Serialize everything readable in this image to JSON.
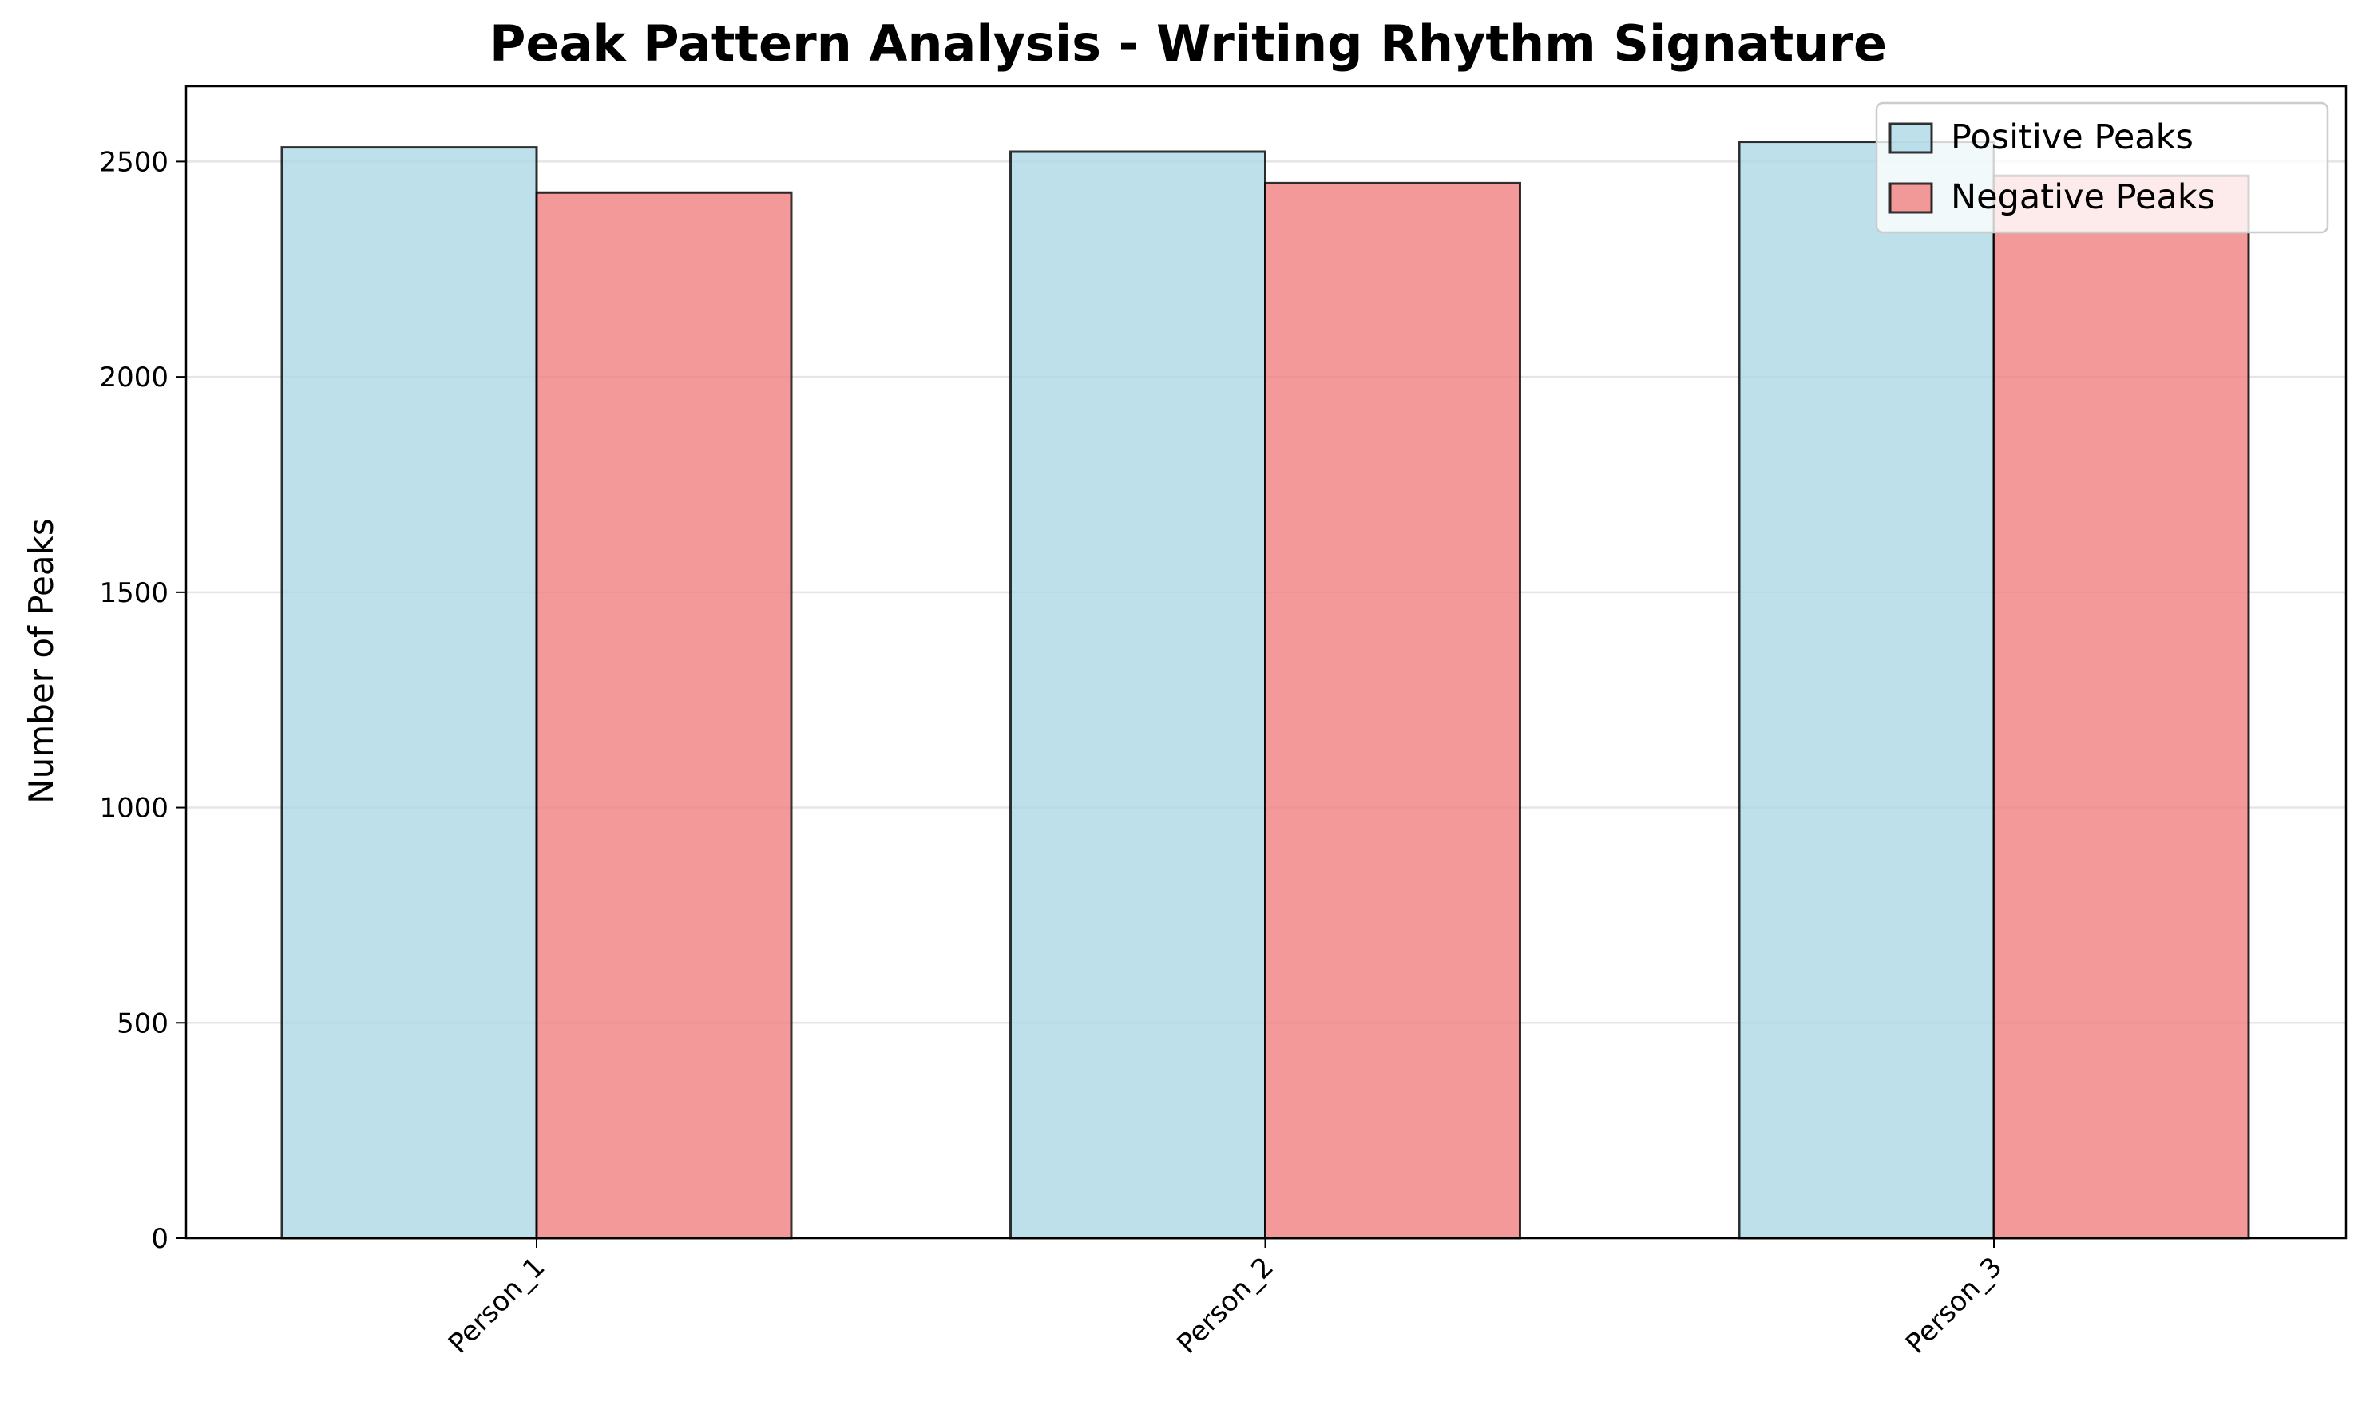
{
  "chart_data": {
    "type": "bar",
    "title": "Peak Pattern Analysis - Writing Rhythm Signature",
    "xlabel": "",
    "ylabel": "Number of Peaks",
    "categories": [
      "Person_1",
      "Person_2",
      "Person_3"
    ],
    "series": [
      {
        "name": "Positive Peaks",
        "values": [
          2533,
          2523,
          2546
        ],
        "color": "#add8e6"
      },
      {
        "name": "Negative Peaks",
        "values": [
          2428,
          2450,
          2467
        ],
        "color": "#f08080"
      }
    ],
    "ylim": [
      0,
      2675
    ],
    "yticks": [
      0,
      500,
      1000,
      1500,
      2000,
      2500
    ],
    "ytick_labels": [
      "0",
      "500",
      "1000",
      "1500",
      "2000",
      "2500"
    ],
    "grid": "y-axis horizontal lines",
    "legend_position": "top-right",
    "xtick_rotation": 45
  }
}
